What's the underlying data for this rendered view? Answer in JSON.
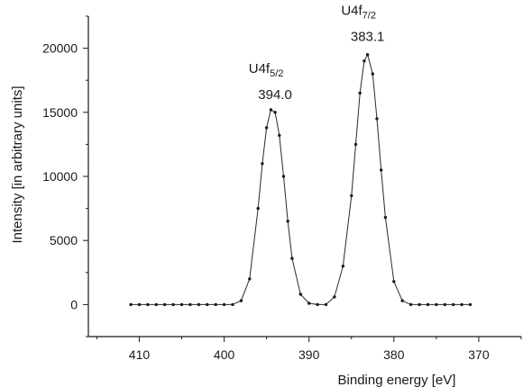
{
  "chart_data": {
    "type": "scatter",
    "title": "",
    "xlabel": "Binding energy [eV]",
    "ylabel": "Intensity [in arbitrary units]",
    "x_reversed": true,
    "xlim": [
      416,
      365
    ],
    "ylim": [
      -2500,
      22500
    ],
    "x_ticks": [
      "410",
      "400",
      "390",
      "380",
      "370"
    ],
    "y_ticks": [
      "0",
      "5000",
      "10000",
      "15000",
      "20000"
    ],
    "grid": false,
    "legend": "none",
    "series": [
      {
        "x": [
          411.0,
          410.0,
          409.0,
          408.0,
          407.0,
          406.0,
          405.0,
          404.0,
          403.0,
          402.0,
          401.0,
          400.0,
          399.0,
          398.0,
          397.0,
          396.0,
          395.5,
          395.0,
          394.5,
          394.0,
          393.5,
          393.0,
          392.5,
          392.0,
          391.0,
          390.0,
          389.0,
          388.0,
          387.0,
          386.0,
          385.0,
          384.5,
          384.0,
          383.5,
          383.1,
          382.5,
          382.0,
          381.5,
          381.0,
          380.0,
          379.0,
          378.0,
          377.0,
          376.0,
          375.0,
          374.0,
          373.0,
          372.0,
          371.0
        ],
        "y": [
          0,
          0,
          0,
          0,
          0,
          0,
          0,
          0,
          0,
          0,
          0,
          0,
          0,
          300,
          2000,
          7500,
          11000,
          13800,
          15200,
          15000,
          13200,
          10000,
          6500,
          3600,
          800,
          100,
          0,
          0,
          600,
          3000,
          8500,
          12500,
          16500,
          19000,
          19500,
          18000,
          14500,
          10500,
          6800,
          1800,
          300,
          0,
          0,
          0,
          0,
          0,
          0,
          0,
          0
        ]
      }
    ],
    "annotations": [
      {
        "label": "U4f",
        "subscript": "5/2",
        "value": "394.0",
        "x": 394.0,
        "y": 15000
      },
      {
        "label": "U4f",
        "subscript": "7/2",
        "value": "383.1",
        "x": 383.1,
        "y": 19500
      }
    ]
  }
}
